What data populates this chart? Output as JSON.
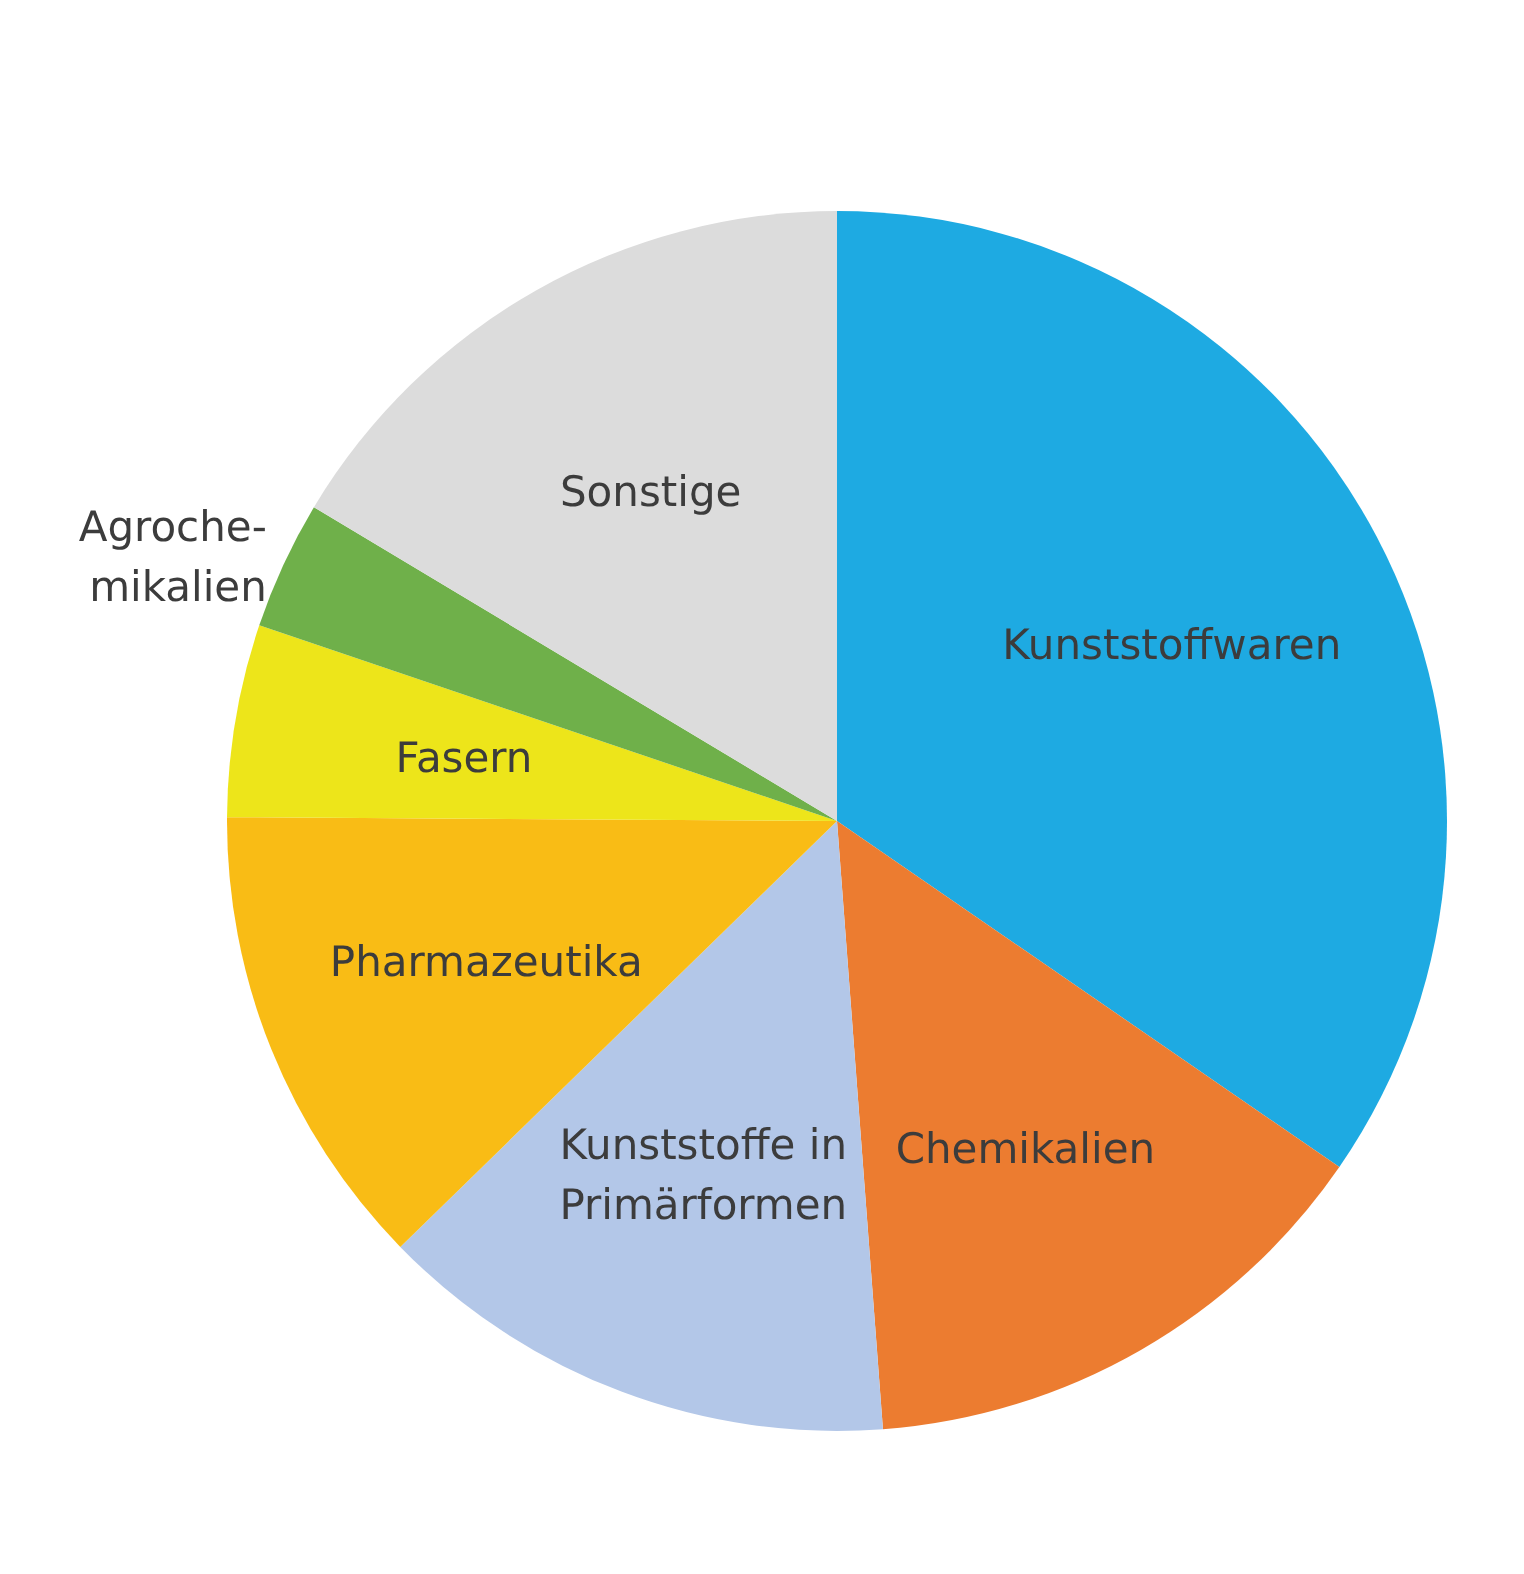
{
  "chart_data": {
    "type": "pie",
    "categories": [
      "Kunststoffwaren",
      "Chemikalien",
      "Kunststoffe in\nPrimärformen",
      "Pharmazeutika",
      "Fasern",
      "Agroche-\nmikalien",
      "Sonstige"
    ],
    "values": [
      34.6,
      14.2,
      13.9,
      12.4,
      5.1,
      3.4,
      16.4
    ],
    "colors": [
      "#1eaae2",
      "#ec7c30",
      "#b3c7e8",
      "#f9bc15",
      "#ede51a",
      "#6fb04a",
      "#dcdcdc"
    ]
  }
}
